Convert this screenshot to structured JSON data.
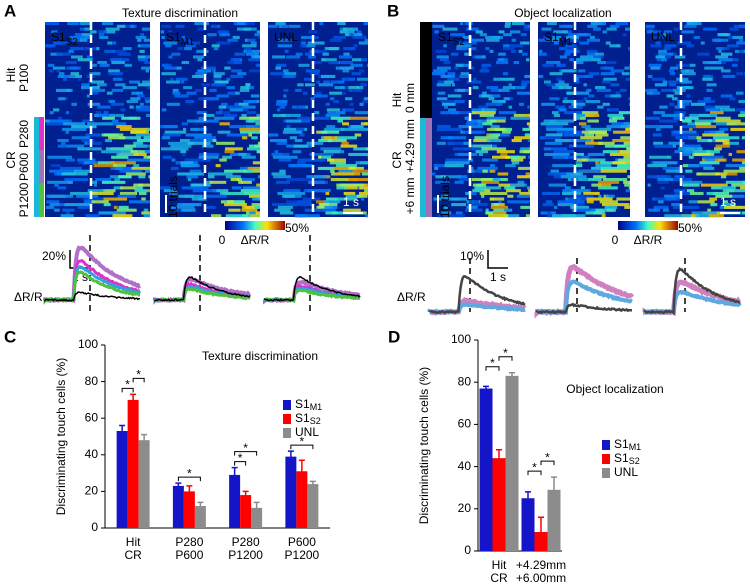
{
  "panel_a": {
    "letter": "A",
    "title": "Texture discrimination",
    "columns": [
      {
        "text": "S1",
        "sub": "S2"
      },
      {
        "text": "S1",
        "sub": "M1"
      },
      {
        "text": "UNL"
      }
    ],
    "hit": "Hit",
    "hit_sub": "P100",
    "cr": "CR",
    "cr_groups": [
      "P280",
      "P600",
      "P1200"
    ],
    "trials": "10 trials",
    "time": "1 s",
    "cbar_min": "0",
    "cbar_max": "50%",
    "cbar_label": "ΔR/R",
    "trace_scale": "20%",
    "trace_time": "1 s",
    "trace_label": "ΔR/R"
  },
  "panel_b": {
    "letter": "B",
    "title": "Object localization",
    "columns": [
      {
        "text": "S1",
        "sub": "S2"
      },
      {
        "text": "S1",
        "sub": "M1"
      },
      {
        "text": "UNL"
      }
    ],
    "hit": "Hit",
    "hit_sub": "0 mm",
    "cr": "CR",
    "cr_groups": [
      "+4.29 mm",
      "+6 mm"
    ],
    "trials": "10 trials",
    "time": "1 s",
    "cbar_min": "0",
    "cbar_max": "50%",
    "cbar_label": "ΔR/R",
    "trace_scale": "10%",
    "trace_time": "1 s",
    "trace_label": "ΔR/R"
  },
  "chart_data": [
    {
      "type": "bar",
      "letter": "C",
      "title": "Texture discrimination",
      "y_label": "Discriminating touch cells (%)",
      "categories": [
        [
          "Hit",
          "CR"
        ],
        [
          "P280",
          "P600"
        ],
        [
          "P280",
          "P1200"
        ],
        [
          "P600",
          "P1200"
        ]
      ],
      "ylim": [
        0,
        100
      ],
      "yticks": [
        0,
        20,
        40,
        60,
        80,
        100
      ],
      "series": [
        {
          "name": "S1",
          "name_sub": "M1",
          "color": "#1414c8",
          "values": [
            53,
            23,
            29,
            39
          ],
          "errors": [
            3,
            1.5,
            4,
            3
          ]
        },
        {
          "name": "S1",
          "name_sub": "S2",
          "color": "#ff0000",
          "values": [
            70,
            20,
            18,
            31
          ],
          "errors": [
            3,
            3,
            2,
            6
          ]
        },
        {
          "name": "UNL",
          "color": "#8c8c8c",
          "values": [
            48,
            12,
            11,
            24
          ],
          "errors": [
            3,
            2,
            3,
            1.5
          ]
        }
      ],
      "significance": [
        {
          "category": 0,
          "pair": [
            0,
            1
          ],
          "label": "*"
        },
        {
          "category": 0,
          "pair": [
            1,
            2
          ],
          "label": "*"
        },
        {
          "category": 1,
          "pair": [
            0,
            2
          ],
          "label": "*"
        },
        {
          "category": 2,
          "pair": [
            0,
            1
          ],
          "label": "*"
        },
        {
          "category": 2,
          "pair": [
            0,
            2
          ],
          "label": "*"
        },
        {
          "category": 3,
          "pair": [
            0,
            2
          ],
          "label": "*"
        }
      ]
    },
    {
      "type": "bar",
      "letter": "D",
      "title": "Object localization",
      "y_label": "Discriminating touch cells (%)",
      "categories": [
        [
          "Hit",
          "CR"
        ],
        [
          "+4.29mm",
          "+6.00mm"
        ]
      ],
      "ylim": [
        0,
        100
      ],
      "yticks": [
        0,
        20,
        40,
        60,
        80,
        100
      ],
      "series": [
        {
          "name": "S1",
          "name_sub": "M1",
          "color": "#1414c8",
          "values": [
            77,
            25
          ],
          "errors": [
            1,
            3
          ]
        },
        {
          "name": "S1",
          "name_sub": "S2",
          "color": "#ff0000",
          "values": [
            44,
            9
          ],
          "errors": [
            4,
            7
          ]
        },
        {
          "name": "UNL",
          "color": "#8c8c8c",
          "values": [
            83,
            29
          ],
          "errors": [
            1.5,
            6
          ]
        }
      ],
      "significance": [
        {
          "category": 0,
          "pair": [
            0,
            1
          ],
          "label": "*"
        },
        {
          "category": 0,
          "pair": [
            1,
            2
          ],
          "label": "*"
        },
        {
          "category": 1,
          "pair": [
            0,
            1
          ],
          "label": "*"
        },
        {
          "category": 1,
          "pair": [
            1,
            2
          ],
          "label": "*"
        }
      ]
    }
  ]
}
